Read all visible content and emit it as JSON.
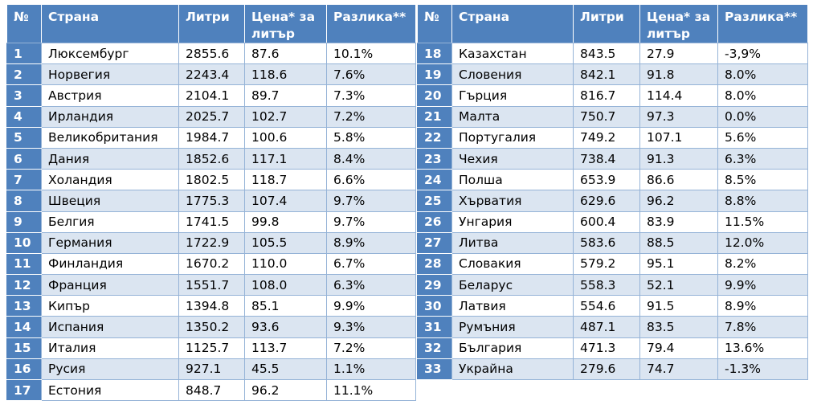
{
  "headers": {
    "num": "№",
    "country": "Страна",
    "liters": "Литри",
    "price": "Цена* за литър",
    "diff": "Разлика**"
  },
  "left_rows": [
    {
      "num": "1",
      "country": "Люксембург",
      "liters": "2855.6",
      "price": "87.6",
      "diff": "10.1%"
    },
    {
      "num": "2",
      "country": "Норвегия",
      "liters": "2243.4",
      "price": "118.6",
      "diff": "7.6%"
    },
    {
      "num": "3",
      "country": "Австрия",
      "liters": "2104.1",
      "price": "89.7",
      "diff": "7.3%"
    },
    {
      "num": "4",
      "country": "Ирландия",
      "liters": "2025.7",
      "price": "102.7",
      "diff": "7.2%"
    },
    {
      "num": "5",
      "country": "Великобритания",
      "liters": "1984.7",
      "price": "100.6",
      "diff": "5.8%"
    },
    {
      "num": "6",
      "country": "Дания",
      "liters": "1852.6",
      "price": "117.1",
      "diff": "8.4%"
    },
    {
      "num": "7",
      "country": "Холандия",
      "liters": "1802.5",
      "price": "118.7",
      "diff": "6.6%"
    },
    {
      "num": "8",
      "country": "Швеция",
      "liters": "1775.3",
      "price": "107.4",
      "diff": "9.7%"
    },
    {
      "num": "9",
      "country": "Белгия",
      "liters": "1741.5",
      "price": "99.8",
      "diff": "9.7%"
    },
    {
      "num": "10",
      "country": "Германия",
      "liters": "1722.9",
      "price": "105.5",
      "diff": "8.9%"
    },
    {
      "num": "11",
      "country": "Финландия",
      "liters": "1670.2",
      "price": "110.0",
      "diff": "6.7%"
    },
    {
      "num": "12",
      "country": "Франция",
      "liters": "1551.7",
      "price": "108.0",
      "diff": "6.3%"
    },
    {
      "num": "13",
      "country": "Кипър",
      "liters": "1394.8",
      "price": "85.1",
      "diff": "9.9%"
    },
    {
      "num": "14",
      "country": "Испания",
      "liters": "1350.2",
      "price": "93.6",
      "diff": "9.3%"
    },
    {
      "num": "15",
      "country": "Италия",
      "liters": "1125.7",
      "price": "113.7",
      "diff": "7.2%"
    },
    {
      "num": "16",
      "country": "Русия",
      "liters": "927.1",
      "price": "45.5",
      "diff": "1.1%"
    },
    {
      "num": "17",
      "country": "Естония",
      "liters": "848.7",
      "price": "96.2",
      "diff": "11.1%"
    }
  ],
  "right_rows": [
    {
      "num": "18",
      "country": "Казахстан",
      "liters": "843.5",
      "price": "27.9",
      "diff": "-3,9%"
    },
    {
      "num": "19",
      "country": "Словения",
      "liters": "842.1",
      "price": "91.8",
      "diff": "8.0%"
    },
    {
      "num": "20",
      "country": "Гърция",
      "liters": "816.7",
      "price": "114.4",
      "diff": "8.0%"
    },
    {
      "num": "21",
      "country": "Малта",
      "liters": "750.7",
      "price": "97.3",
      "diff": "0.0%"
    },
    {
      "num": "22",
      "country": "Португалия",
      "liters": "749.2",
      "price": "107.1",
      "diff": "5.6%"
    },
    {
      "num": "23",
      "country": "Чехия",
      "liters": "738.4",
      "price": "91.3",
      "diff": "6.3%"
    },
    {
      "num": "24",
      "country": "Полша",
      "liters": "653.9",
      "price": "86.6",
      "diff": "8.5%"
    },
    {
      "num": "25",
      "country": "Хърватия",
      "liters": "629.6",
      "price": "96.2",
      "diff": "8.8%"
    },
    {
      "num": "26",
      "country": "Унгария",
      "liters": "600.4",
      "price": "83.9",
      "diff": "11.5%"
    },
    {
      "num": "27",
      "country": "Литва",
      "liters": "583.6",
      "price": "88.5",
      "diff": "12.0%"
    },
    {
      "num": "28",
      "country": "Словакия",
      "liters": "579.2",
      "price": "95.1",
      "diff": "8.2%"
    },
    {
      "num": "29",
      "country": "Беларус",
      "liters": "558.3",
      "price": "52.1",
      "diff": "9.9%"
    },
    {
      "num": "30",
      "country": "Латвия",
      "liters": "554.6",
      "price": "91.5",
      "diff": "8.9%"
    },
    {
      "num": "31",
      "country": "Румъния",
      "liters": "487.1",
      "price": "83.5",
      "diff": "7.8%"
    },
    {
      "num": "32",
      "country": "България",
      "liters": "471.3",
      "price": "79.4",
      "diff": "13.6%"
    },
    {
      "num": "33",
      "country": "Украйна",
      "liters": "279.6",
      "price": "74.7",
      "diff": "-1.3%"
    }
  ]
}
